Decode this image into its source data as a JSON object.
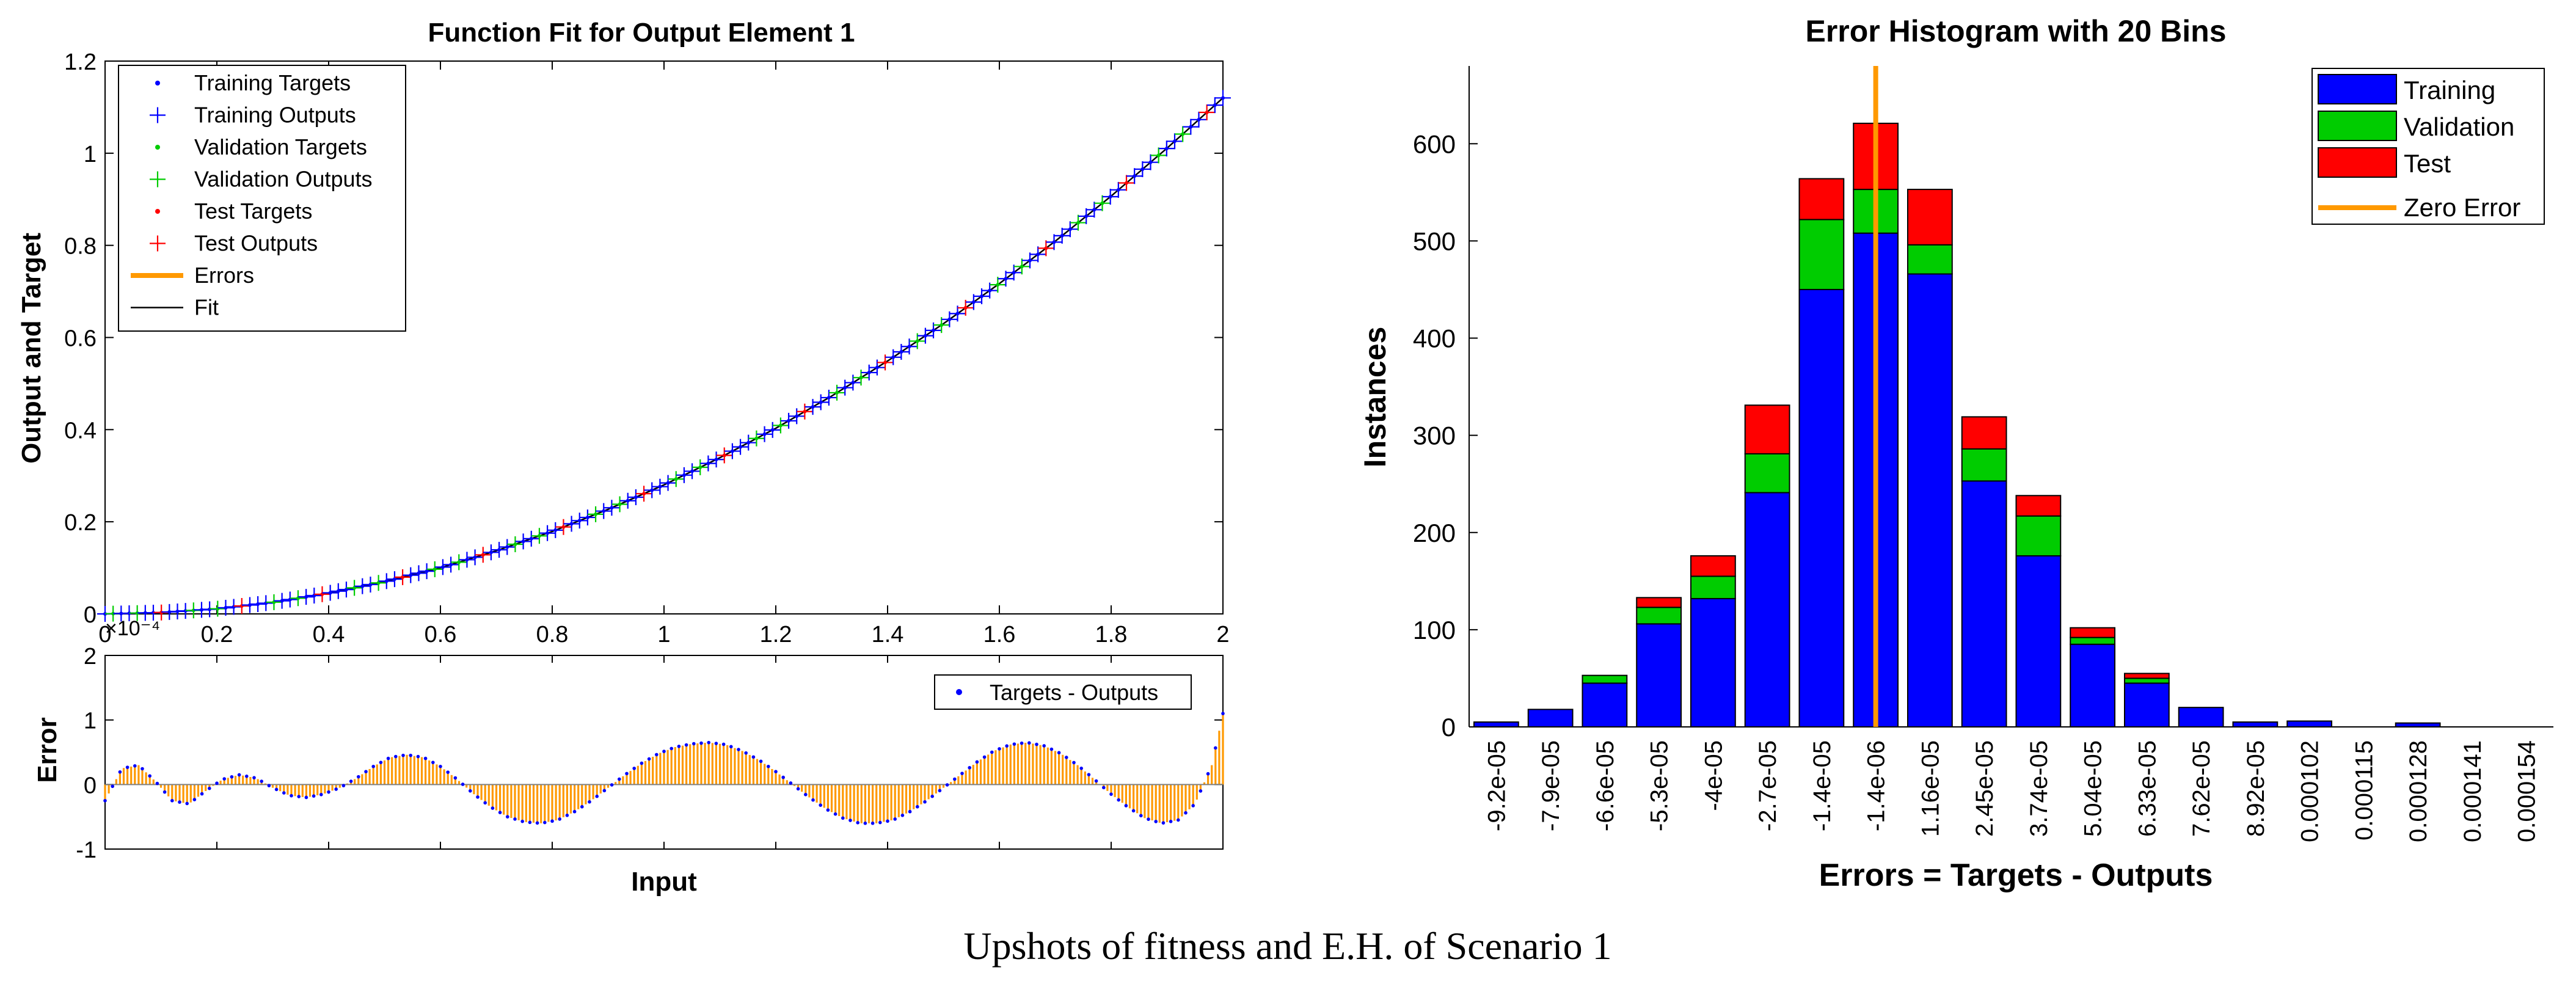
{
  "caption": "Upshots of fitness and E.H. of Scenario 1",
  "chart_data": [
    {
      "id": "fit",
      "type": "line",
      "title": "Function Fit for Output Element 1",
      "xlabel": "",
      "ylabel": "Output and Target",
      "xlim": [
        0,
        2
      ],
      "ylim": [
        0,
        1.2
      ],
      "xticks": [
        "0",
        "0.2",
        "0.4",
        "0.6",
        "0.8",
        "1",
        "1.2",
        "1.4",
        "1.6",
        "1.8",
        "2"
      ],
      "yticks": [
        "0",
        "0.2",
        "0.4",
        "0.6",
        "0.8",
        "1",
        "1.2"
      ],
      "legend": {
        "position": "top-left",
        "entries": [
          {
            "label": "Training Targets",
            "color": "#0000ff",
            "marker": "dot"
          },
          {
            "label": "Training Outputs",
            "color": "#0000ff",
            "marker": "plus"
          },
          {
            "label": "Validation Targets",
            "color": "#00cc00",
            "marker": "dot"
          },
          {
            "label": "Validation Outputs",
            "color": "#00cc00",
            "marker": "plus"
          },
          {
            "label": "Test Targets",
            "color": "#ff0000",
            "marker": "dot"
          },
          {
            "label": "Test Outputs",
            "color": "#ff0000",
            "marker": "plus"
          },
          {
            "label": "Errors",
            "color": "#ff9900",
            "marker": "line-thick"
          },
          {
            "label": "Fit",
            "color": "#000000",
            "marker": "line"
          }
        ]
      },
      "fit_curve": {
        "description": "smooth monotonic curve y = 0.28*x^2 (approx), from (0,0) to (2,1.12)",
        "x": [
          0,
          0.1,
          0.2,
          0.3,
          0.4,
          0.5,
          0.6,
          0.7,
          0.8,
          0.9,
          1.0,
          1.1,
          1.2,
          1.3,
          1.4,
          1.5,
          1.6,
          1.7,
          1.8,
          1.9,
          2.0
        ],
        "y": [
          0,
          0.003,
          0.011,
          0.025,
          0.045,
          0.07,
          0.1,
          0.137,
          0.179,
          0.227,
          0.28,
          0.339,
          0.403,
          0.473,
          0.549,
          0.63,
          0.717,
          0.809,
          0.907,
          1.011,
          1.12
        ]
      },
      "colors": {
        "training": "#0000ff",
        "validation": "#00cc00",
        "test": "#ff0000",
        "errors": "#ff9900",
        "fit": "#000000"
      }
    },
    {
      "id": "error",
      "type": "area",
      "title": "",
      "xlabel": "Input",
      "ylabel": "Error",
      "exponent_label": "×10⁻⁴",
      "xlim": [
        0,
        2
      ],
      "ylim": [
        -1,
        2
      ],
      "yticks": [
        "-1",
        "0",
        "1",
        "2"
      ],
      "legend": {
        "position": "top-right",
        "entries": [
          {
            "label": "Targets - Outputs",
            "color": "#0000ff",
            "marker": "dot"
          }
        ]
      },
      "series": {
        "x": [
          0,
          0.03,
          0.06,
          0.09,
          0.12,
          0.15,
          0.18,
          0.21,
          0.24,
          0.27,
          0.3,
          0.33,
          0.36,
          0.39,
          0.42,
          0.45,
          0.48,
          0.51,
          0.54,
          0.57,
          0.6,
          0.63,
          0.66,
          0.69,
          0.72,
          0.75,
          0.78,
          0.81,
          0.84,
          0.87,
          0.9,
          0.93,
          0.96,
          0.99,
          1.02,
          1.05,
          1.08,
          1.11,
          1.14,
          1.17,
          1.2,
          1.23,
          1.26,
          1.29,
          1.32,
          1.35,
          1.38,
          1.41,
          1.44,
          1.47,
          1.5,
          1.53,
          1.56,
          1.59,
          1.62,
          1.65,
          1.68,
          1.71,
          1.74,
          1.77,
          1.8,
          1.83,
          1.86,
          1.89,
          1.92,
          1.95,
          1.98,
          2.0
        ],
        "y": [
          -0.25,
          0.25,
          0.3,
          0.05,
          -0.25,
          -0.3,
          -0.1,
          0.08,
          0.15,
          0.1,
          -0.05,
          -0.17,
          -0.2,
          -0.15,
          -0.05,
          0.1,
          0.28,
          0.42,
          0.46,
          0.42,
          0.28,
          0.08,
          -0.15,
          -0.35,
          -0.5,
          -0.58,
          -0.6,
          -0.55,
          -0.42,
          -0.25,
          -0.05,
          0.15,
          0.33,
          0.48,
          0.58,
          0.63,
          0.65,
          0.62,
          0.52,
          0.38,
          0.2,
          0.0,
          -0.2,
          -0.38,
          -0.52,
          -0.6,
          -0.6,
          -0.55,
          -0.42,
          -0.25,
          -0.05,
          0.15,
          0.35,
          0.52,
          0.62,
          0.65,
          0.6,
          0.48,
          0.3,
          0.08,
          -0.15,
          -0.35,
          -0.52,
          -0.6,
          -0.55,
          -0.3,
          0.3,
          1.1
        ]
      },
      "colors": {
        "errors": "#ff9900",
        "points": "#0000ff",
        "zero_line": "#808080"
      }
    },
    {
      "id": "hist",
      "type": "bar",
      "title": "Error Histogram with 20 Bins",
      "xlabel": "Errors = Targets - Outputs",
      "ylabel": "Instances",
      "ylim": [
        0,
        680
      ],
      "yticks": [
        "0",
        "100",
        "200",
        "300",
        "400",
        "500",
        "600"
      ],
      "categories": [
        "-9.2e-05",
        "-7.9e-05",
        "-6.6e-05",
        "-5.3e-05",
        "-4e-05",
        "-2.7e-05",
        "-1.4e-05",
        "-1.4e-06",
        "1.16e-05",
        "2.45e-05",
        "3.74e-05",
        "5.04e-05",
        "6.33e-05",
        "7.62e-05",
        "8.92e-05",
        "0.000102",
        "0.000115",
        "0.000128",
        "0.000141",
        "0.000154"
      ],
      "series": [
        {
          "name": "Training",
          "color": "#0000ff",
          "values": [
            5,
            18,
            45,
            106,
            132,
            241,
            450,
            508,
            466,
            253,
            176,
            85,
            45,
            20,
            5,
            6,
            0,
            4,
            0,
            0
          ]
        },
        {
          "name": "Validation",
          "color": "#00cc00",
          "values": [
            0,
            0,
            8,
            17,
            23,
            40,
            72,
            45,
            30,
            33,
            41,
            7,
            5,
            0,
            0,
            0,
            0,
            0,
            0,
            0
          ]
        },
        {
          "name": "Test",
          "color": "#ff0000",
          "values": [
            0,
            0,
            0,
            10,
            21,
            50,
            42,
            68,
            57,
            33,
            21,
            10,
            5,
            0,
            0,
            0,
            0,
            0,
            0,
            0
          ]
        }
      ],
      "zero_error": {
        "label": "Zero Error",
        "color": "#ff9900",
        "category_index": 7
      },
      "legend": {
        "position": "top-right",
        "entries": [
          "Training",
          "Validation",
          "Test",
          "Zero Error"
        ]
      }
    }
  ]
}
